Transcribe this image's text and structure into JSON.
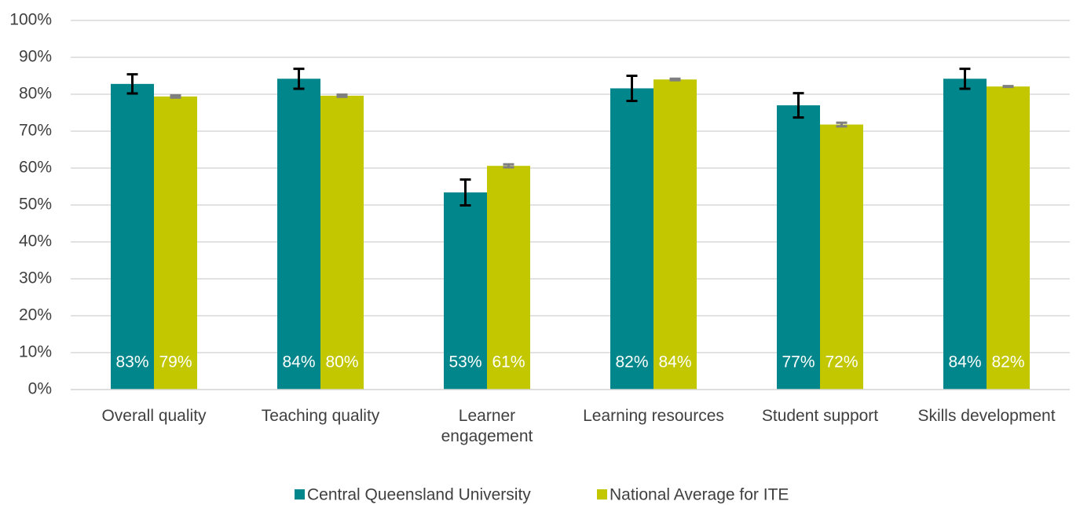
{
  "chart_data": {
    "type": "bar",
    "categories": [
      "Overall quality",
      "Teaching quality",
      "Learner\nengagement",
      "Learning resources",
      "Student support",
      "Skills development"
    ],
    "series": [
      {
        "name": "Central Queensland University",
        "color": "#00868b",
        "values": [
          82.8,
          84.2,
          53.4,
          81.6,
          77.0,
          84.2
        ],
        "errors": [
          2.6,
          2.7,
          3.5,
          3.4,
          3.3,
          2.7
        ],
        "value_labels": [
          "83%",
          "84%",
          "53%",
          "82%",
          "77%",
          "84%"
        ],
        "error_color": "#000000"
      },
      {
        "name": "National Average for ITE",
        "color": "#c2c700",
        "values": [
          79.4,
          79.6,
          60.6,
          84.0,
          71.8,
          82.1
        ],
        "errors": [
          0.3,
          0.3,
          0.4,
          0.2,
          0.5,
          0.1
        ],
        "value_labels": [
          "79%",
          "80%",
          "61%",
          "84%",
          "72%",
          "82%"
        ],
        "error_color": "#7f7f7f"
      }
    ],
    "ylim": [
      0,
      100
    ],
    "yticks": [
      {
        "value": 0,
        "label": "0%"
      },
      {
        "value": 10,
        "label": "10%"
      },
      {
        "value": 20,
        "label": "20%"
      },
      {
        "value": 30,
        "label": "30%"
      },
      {
        "value": 40,
        "label": "40%"
      },
      {
        "value": 50,
        "label": "50%"
      },
      {
        "value": 60,
        "label": "60%"
      },
      {
        "value": 70,
        "label": "70%"
      },
      {
        "value": 80,
        "label": "80%"
      },
      {
        "value": 90,
        "label": "90%"
      },
      {
        "value": 100,
        "label": "100%"
      }
    ],
    "grid": true,
    "legend": "bottom"
  }
}
